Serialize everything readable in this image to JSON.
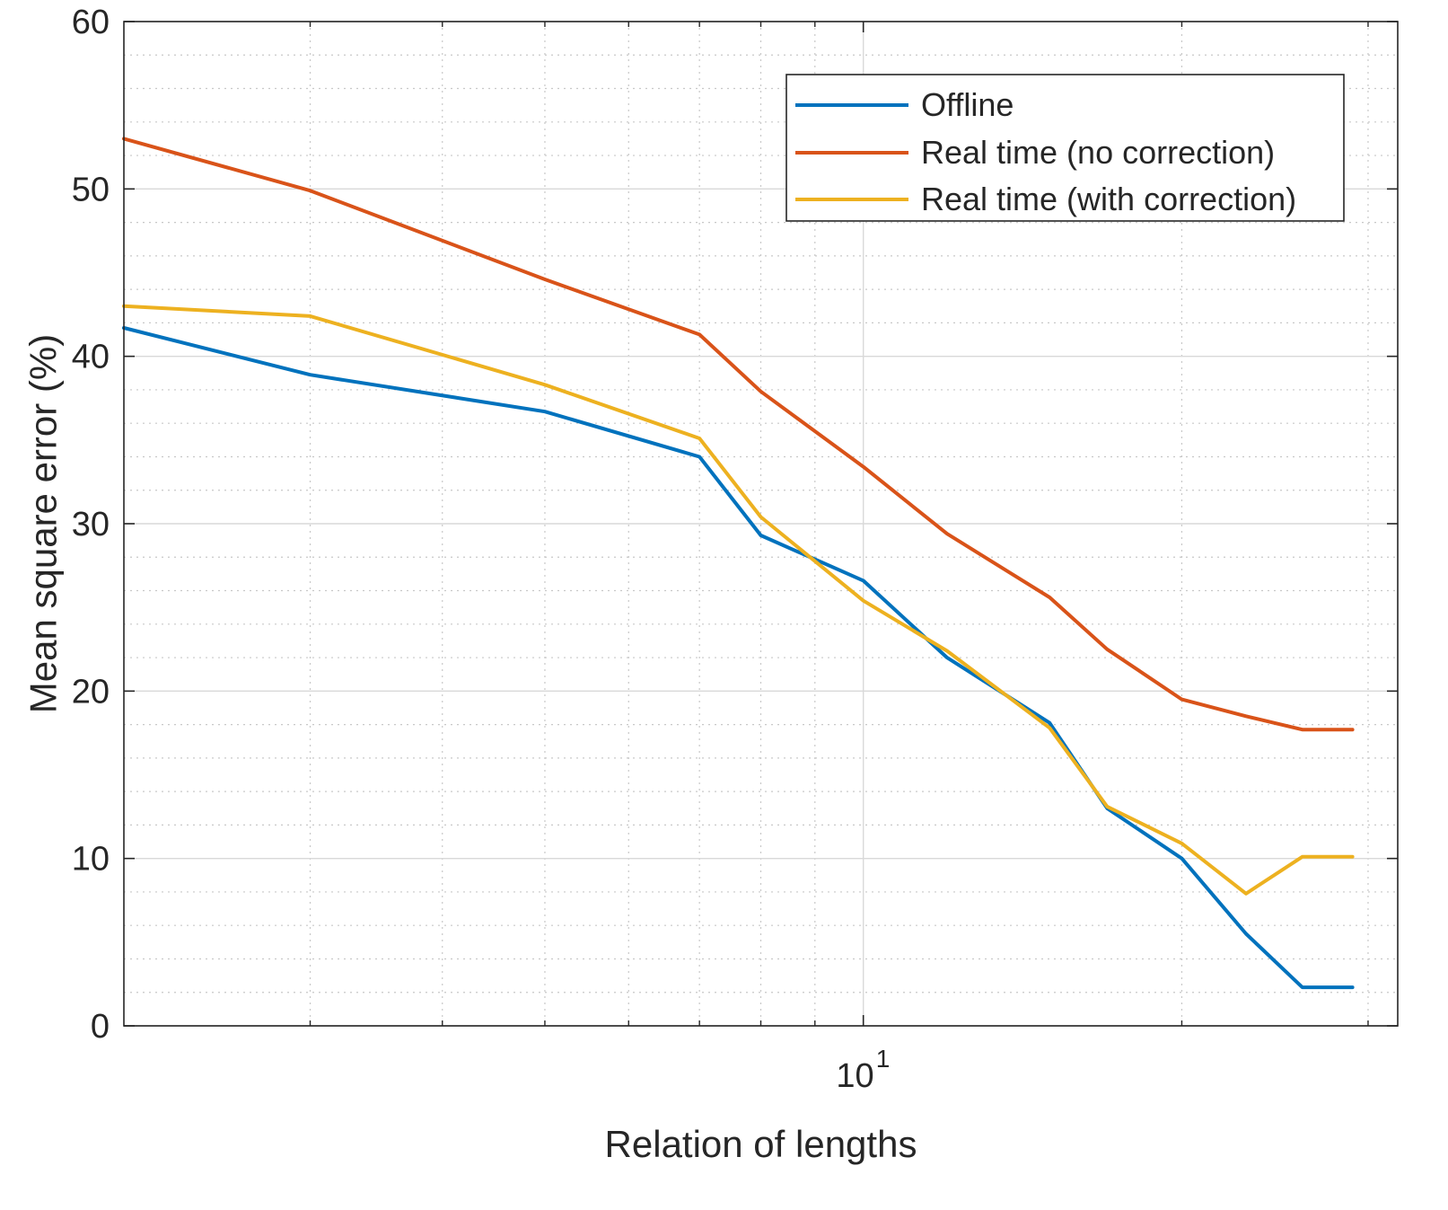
{
  "chart_data": {
    "type": "line",
    "title": "",
    "xlabel": "Relation of lengths",
    "ylabel": "Mean square error (%)",
    "xscale": "log",
    "xlim": [
      2,
      32
    ],
    "ylim": [
      0,
      60
    ],
    "yticks": [
      0,
      10,
      20,
      30,
      40,
      50,
      60
    ],
    "xticks": [
      {
        "value": 10,
        "base": "10",
        "exponent": "1"
      }
    ],
    "x_minor_ticks": [
      3,
      4,
      5,
      6,
      7,
      8,
      9,
      20,
      30
    ],
    "y_minor_step": 2,
    "grid": "on",
    "minor_grid": "on",
    "legend_position": "top-right",
    "x": [
      2,
      3,
      4,
      5,
      6,
      7,
      8,
      9,
      10,
      11,
      12,
      13,
      14,
      15,
      16,
      17,
      18,
      19,
      20,
      21,
      22,
      23,
      24,
      25,
      26,
      27,
      28,
      29,
      30,
      31,
      32
    ],
    "series": [
      {
        "name": "Offline",
        "color": "#0072BD",
        "x": [
          2,
          3,
          5,
          7,
          8,
          10,
          12,
          15,
          17,
          20,
          23,
          26,
          29
        ],
        "values": [
          41.7,
          38.9,
          36.7,
          34.0,
          29.3,
          26.6,
          22.0,
          18.1,
          13.0,
          10.0,
          5.5,
          2.3,
          2.3
        ]
      },
      {
        "name": "Real time (no correction)",
        "color": "#D95319",
        "x": [
          2,
          3,
          5,
          7,
          8,
          10,
          12,
          15,
          17,
          20,
          23,
          26,
          29
        ],
        "values": [
          53.0,
          49.9,
          44.6,
          41.3,
          37.9,
          33.4,
          29.4,
          25.6,
          22.5,
          19.5,
          18.5,
          17.7,
          17.7
        ]
      },
      {
        "name": "Real time (with correction)",
        "color": "#EDB120",
        "x": [
          2,
          3,
          5,
          7,
          8,
          10,
          12,
          15,
          17,
          20,
          23,
          26,
          29
        ],
        "values": [
          43.0,
          42.4,
          38.3,
          35.1,
          30.4,
          25.4,
          22.4,
          17.8,
          13.1,
          10.9,
          7.9,
          10.1,
          10.1
        ]
      }
    ]
  }
}
